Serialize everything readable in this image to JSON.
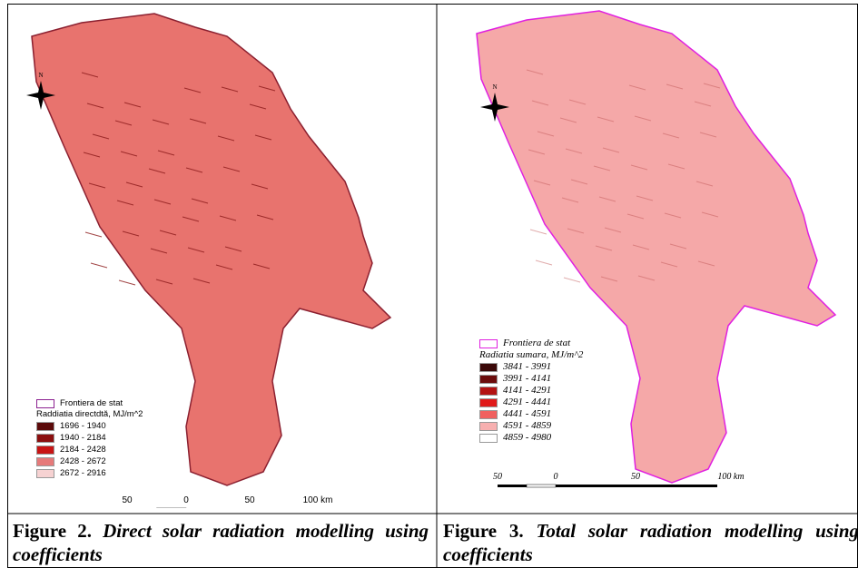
{
  "figures": [
    {
      "north_label": "N",
      "legend": {
        "border_label": "Frontiera de stat",
        "title": "Raddiatia directdtă, MJ/m^2",
        "entries": [
          {
            "label": "1696 - 1940",
            "color": "#5c0b0b"
          },
          {
            "label": "1940 - 2184",
            "color": "#8b0f0f"
          },
          {
            "label": "2184 - 2428",
            "color": "#c81414"
          },
          {
            "label": "2428 - 2672",
            "color": "#e67a7a"
          },
          {
            "label": "2672 - 2916",
            "color": "#f6d2d2"
          }
        ]
      },
      "scale_labels": [
        "50",
        "0",
        "50",
        "100 km"
      ],
      "caption": {
        "label": "Figure 2.",
        "title": "Direct solar radiation modelling using coefficients"
      }
    },
    {
      "north_label": "N",
      "legend": {
        "border_label": "Frontiera de stat",
        "title": "Radiatia sumara, MJ/m^2",
        "entries": [
          {
            "label": "3841 - 3991",
            "color": "#3a0808"
          },
          {
            "label": "3991 - 4141",
            "color": "#6b0c0c"
          },
          {
            "label": "4141 - 4291",
            "color": "#b31212"
          },
          {
            "label": "4291 - 4441",
            "color": "#e01a1a"
          },
          {
            "label": "4441 - 4591",
            "color": "#f0605f"
          },
          {
            "label": "4591 - 4859",
            "color": "#f7b0b0"
          },
          {
            "label": "4859 - 4980",
            "color": "#ffffff"
          }
        ]
      },
      "scale_labels": [
        "50",
        "0",
        "50",
        "100 km"
      ],
      "caption": {
        "label": "Figure 3.",
        "title": "Total solar radiation modelling using coefficients"
      }
    }
  ]
}
